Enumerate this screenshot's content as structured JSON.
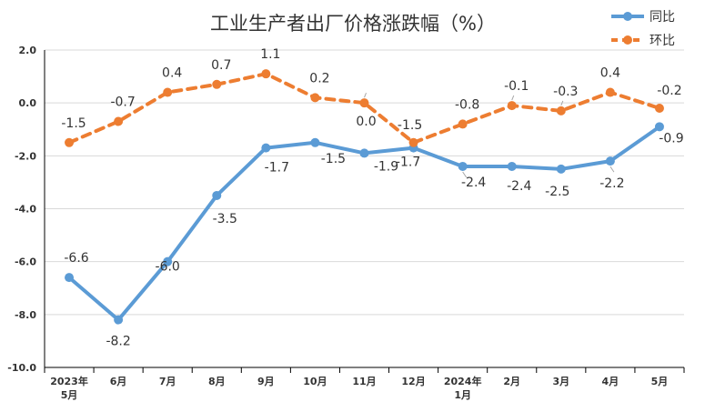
{
  "chart_data": {
    "type": "line",
    "title": "工业生产者出厂价格涨跌幅（%）",
    "categories": [
      [
        "2023年",
        "5月"
      ],
      [
        "6月"
      ],
      [
        "7月"
      ],
      [
        "8月"
      ],
      [
        "9月"
      ],
      [
        "10月"
      ],
      [
        "11月"
      ],
      [
        "12月"
      ],
      [
        "2024年",
        "1月"
      ],
      [
        "2月"
      ],
      [
        "3月"
      ],
      [
        "4月"
      ],
      [
        "5月"
      ]
    ],
    "series": [
      {
        "name": "同比",
        "color": "#5b9bd5",
        "dashed": false,
        "values": [
          -6.6,
          -8.2,
          -6.0,
          -3.5,
          -1.7,
          -1.5,
          -1.9,
          -1.7,
          -2.4,
          -2.4,
          -2.5,
          -2.2,
          -0.9
        ],
        "labels": [
          "-6.6",
          "-8.2",
          "-6.0",
          "-3.5",
          "-1.7",
          "-1.5",
          "-1.9",
          "-1.7",
          "-2.4",
          "-2.4",
          "-2.5",
          "-2.2",
          "-0.9"
        ]
      },
      {
        "name": "环比",
        "color": "#ed7d31",
        "dashed": true,
        "values": [
          -1.5,
          -0.7,
          0.4,
          0.7,
          1.1,
          0.2,
          0.0,
          -1.5,
          -0.8,
          -0.1,
          -0.3,
          0.4,
          -0.2
        ],
        "labels": [
          "-1.5",
          "-0.7",
          "0.4",
          "0.7",
          "1.1",
          "0.2",
          "0.0",
          "-1.5",
          "-0.8",
          "-0.1",
          "-0.3",
          "0.4",
          "-0.2"
        ]
      }
    ],
    "ylim": [
      -10.0,
      2.0
    ],
    "yticks": [
      "2.0",
      "0.0",
      "-2.0",
      "-4.0",
      "-6.0",
      "-8.0",
      "-10.0"
    ],
    "grid": true,
    "legend": "top-right"
  }
}
